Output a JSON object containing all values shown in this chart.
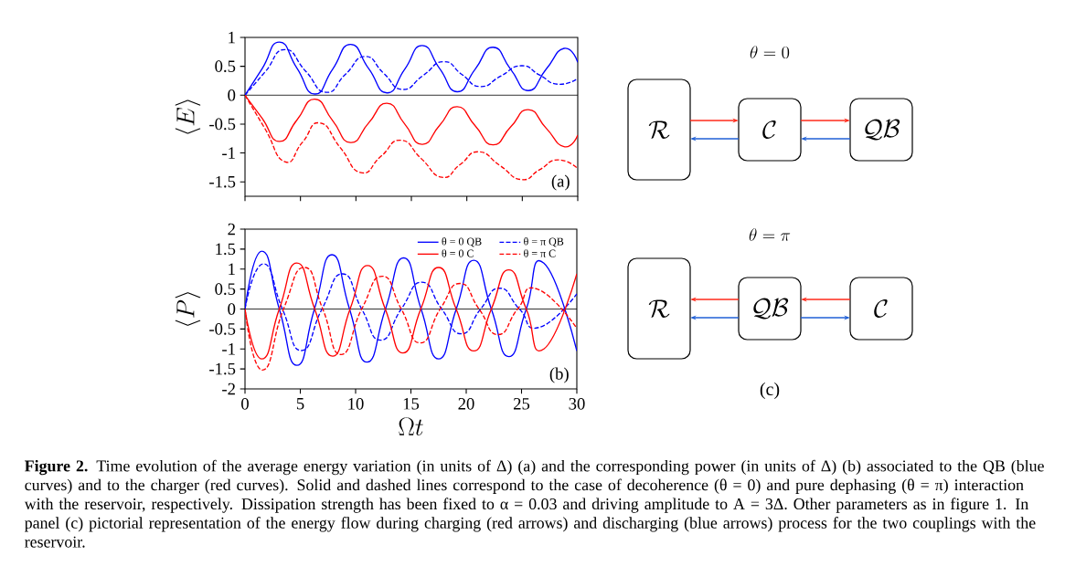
{
  "chart_data": [
    {
      "type": "line",
      "ylabel": "\\langle E \\rangle",
      "xlim": [
        0,
        30
      ],
      "ylim": [
        -1.75,
        1
      ],
      "xticks": [
        0,
        5,
        10,
        15,
        20,
        25,
        30
      ],
      "yticks": [
        -1.5,
        -1,
        -0.5,
        0,
        0.5,
        1
      ],
      "tick_labels": "y",
      "legend": false,
      "ref_lines": [
        {
          "axis": "y",
          "value": 0,
          "color": "#000000"
        }
      ],
      "annotations": [
        "(a)",
        "**Figure 2.** Time evolution of the average energy variation (in units of Δ) (a) and the corresponding power (in units of Δ) (b) associated to the QB (blue curves) and to the charger (red curves). Solid and dashed lines correspond to the case of decoherence (θ = 0) and pure dephasing (θ = π) interaction with the reservoir, respectively. Dissipation strength has been fixed to α = 0.03 and driving amplitude to A = 3Δ. Other parameters as in figure 1. In panel (c) pictorial representation of the energy flow during charging (red arrows) and discharging (blue arrows) process for the two couplings with the reservoir."
      ],
      "series": [
        {
          "color": "#0000ff",
          "line_style": "solid",
          "x": [
            0,
            1.55,
            3.08,
            4.68,
            6.28,
            7.9,
            9.5,
            11.15,
            12.8,
            14.4,
            15.96,
            17.55,
            19.13,
            20.75,
            22.35,
            23.95,
            25.54,
            27.15,
            28.76,
            30
          ],
          "values": [
            0,
            0.46,
            0.92,
            0.47,
            0.02,
            0.45,
            0.88,
            0.46,
            0.04,
            0.45,
            0.86,
            0.46,
            0.06,
            0.45,
            0.83,
            0.45,
            0.08,
            0.45,
            0.81,
            0.57
          ]
        },
        {
          "color": "#0000ff",
          "line_style": "dashed",
          "x": [
            0,
            1.8,
            3.58,
            5.45,
            7.29,
            9.05,
            10.82,
            12.5,
            14.18,
            16.05,
            17.9,
            19.55,
            21.2,
            23.05,
            24.9,
            26.55,
            28.2,
            30
          ],
          "values": [
            0,
            0.4,
            0.79,
            0.42,
            0.05,
            0.36,
            0.67,
            0.38,
            0.1,
            0.34,
            0.58,
            0.36,
            0.15,
            0.33,
            0.51,
            0.35,
            0.19,
            0.29
          ]
        },
        {
          "color": "#ff0000",
          "line_style": "solid",
          "x": [
            0,
            1.55,
            3.08,
            4.68,
            6.28,
            7.9,
            9.5,
            11.15,
            12.8,
            14.4,
            15.96,
            17.55,
            19.13,
            20.75,
            22.35,
            23.95,
            25.54,
            27.15,
            28.76,
            30
          ],
          "values": [
            0,
            -0.4,
            -0.8,
            -0.43,
            -0.07,
            -0.44,
            -0.82,
            -0.48,
            -0.14,
            -0.5,
            -0.85,
            -0.52,
            -0.2,
            -0.53,
            -0.86,
            -0.55,
            -0.25,
            -0.57,
            -0.89,
            -0.69
          ]
        },
        {
          "color": "#ff0000",
          "line_style": "dashed",
          "x": [
            0,
            1.8,
            3.58,
            5.16,
            6.74,
            8.6,
            10.46,
            12.25,
            14.04,
            15.9,
            17.75,
            19.4,
            21.06,
            23.0,
            24.91,
            26.56,
            28.21,
            30
          ],
          "values": [
            0,
            -0.58,
            -1.15,
            -0.82,
            -0.48,
            -0.91,
            -1.34,
            -1.06,
            -0.78,
            -1.1,
            -1.42,
            -1.2,
            -0.98,
            -1.22,
            -1.46,
            -1.29,
            -1.12,
            -1.27
          ]
        }
      ]
    },
    {
      "type": "line",
      "xlabel": "\\Omega t",
      "ylabel": "\\langle P \\rangle",
      "xlim": [
        0,
        30
      ],
      "ylim": [
        -2,
        2
      ],
      "xticks": [
        0,
        5,
        10,
        15,
        20,
        25,
        30
      ],
      "yticks": [
        -2,
        -1.5,
        -1,
        -0.5,
        0,
        0.5,
        1,
        1.5,
        2
      ],
      "legend": "top right",
      "ref_lines": [
        {
          "axis": "y",
          "value": 0,
          "color": "#000000"
        }
      ],
      "annotations": [
        "(b)"
      ],
      "series": [
        {
          "name": "θ = 0 QB",
          "color": "#0000ff",
          "line_style": "solid",
          "x": [
            0,
            1.52,
            3.1,
            4.69,
            6.28,
            7.86,
            9.45,
            11.03,
            12.7,
            14.34,
            15.92,
            17.5,
            19.1,
            20.68,
            22.27,
            23.85,
            25.43,
            27.02,
            30
          ],
          "values": [
            0,
            1.45,
            0,
            -1.41,
            0,
            1.36,
            0,
            -1.33,
            0,
            1.28,
            0,
            -1.25,
            0,
            1.22,
            0,
            -1.19,
            0,
            1.15,
            -1.05
          ]
        },
        {
          "name": "θ = π QB",
          "color": "#0000ff",
          "line_style": "dashed",
          "x": [
            0,
            1.65,
            3.38,
            5.1,
            6.96,
            8.82,
            10.55,
            12.27,
            14.13,
            15.99,
            17.78,
            19.57,
            21.3,
            23.02,
            24.81,
            26.6,
            30
          ],
          "values": [
            0,
            1.13,
            0,
            -1.04,
            0,
            0.88,
            0,
            -0.78,
            0,
            0.67,
            0,
            -0.62,
            0,
            0.52,
            0,
            -0.46,
            0.38
          ]
        },
        {
          "name": "θ = 0 C",
          "color": "#ff0000",
          "line_style": "solid",
          "x": [
            0,
            1.52,
            3.1,
            4.69,
            6.3,
            7.91,
            9.5,
            11.08,
            12.68,
            14.28,
            15.89,
            17.5,
            19.09,
            20.68,
            22.27,
            23.85,
            25.43,
            27.02,
            30
          ],
          "values": [
            0,
            -1.25,
            0,
            1.15,
            0,
            -1.18,
            0,
            1.09,
            0,
            -1.1,
            0,
            1.04,
            0,
            -1.05,
            0,
            0.98,
            0,
            -1.0,
            0.88
          ]
        },
        {
          "name": "θ = π C",
          "color": "#ff0000",
          "line_style": "dashed",
          "x": [
            0,
            1.57,
            3.48,
            5.38,
            7.03,
            8.68,
            10.55,
            12.41,
            14.13,
            15.85,
            17.65,
            19.44,
            21.16,
            22.88,
            24.65,
            26.41,
            30
          ],
          "values": [
            0,
            -1.53,
            0,
            1.04,
            0,
            -1.14,
            0,
            0.82,
            0,
            -0.85,
            0,
            0.64,
            0,
            -0.64,
            0,
            0.5,
            -0.48
          ]
        }
      ]
    },
    {
      "type": "other",
      "title": "(c)",
      "annotations": [
        "\\theta = 0",
        "\\mathcal{R}",
        "\\mathcal{C}",
        "\\mathcal{QB}",
        "\\theta = \\pi",
        "\\mathcal{R}",
        "\\mathcal{QB}",
        "\\mathcal{C}"
      ]
    }
  ]
}
